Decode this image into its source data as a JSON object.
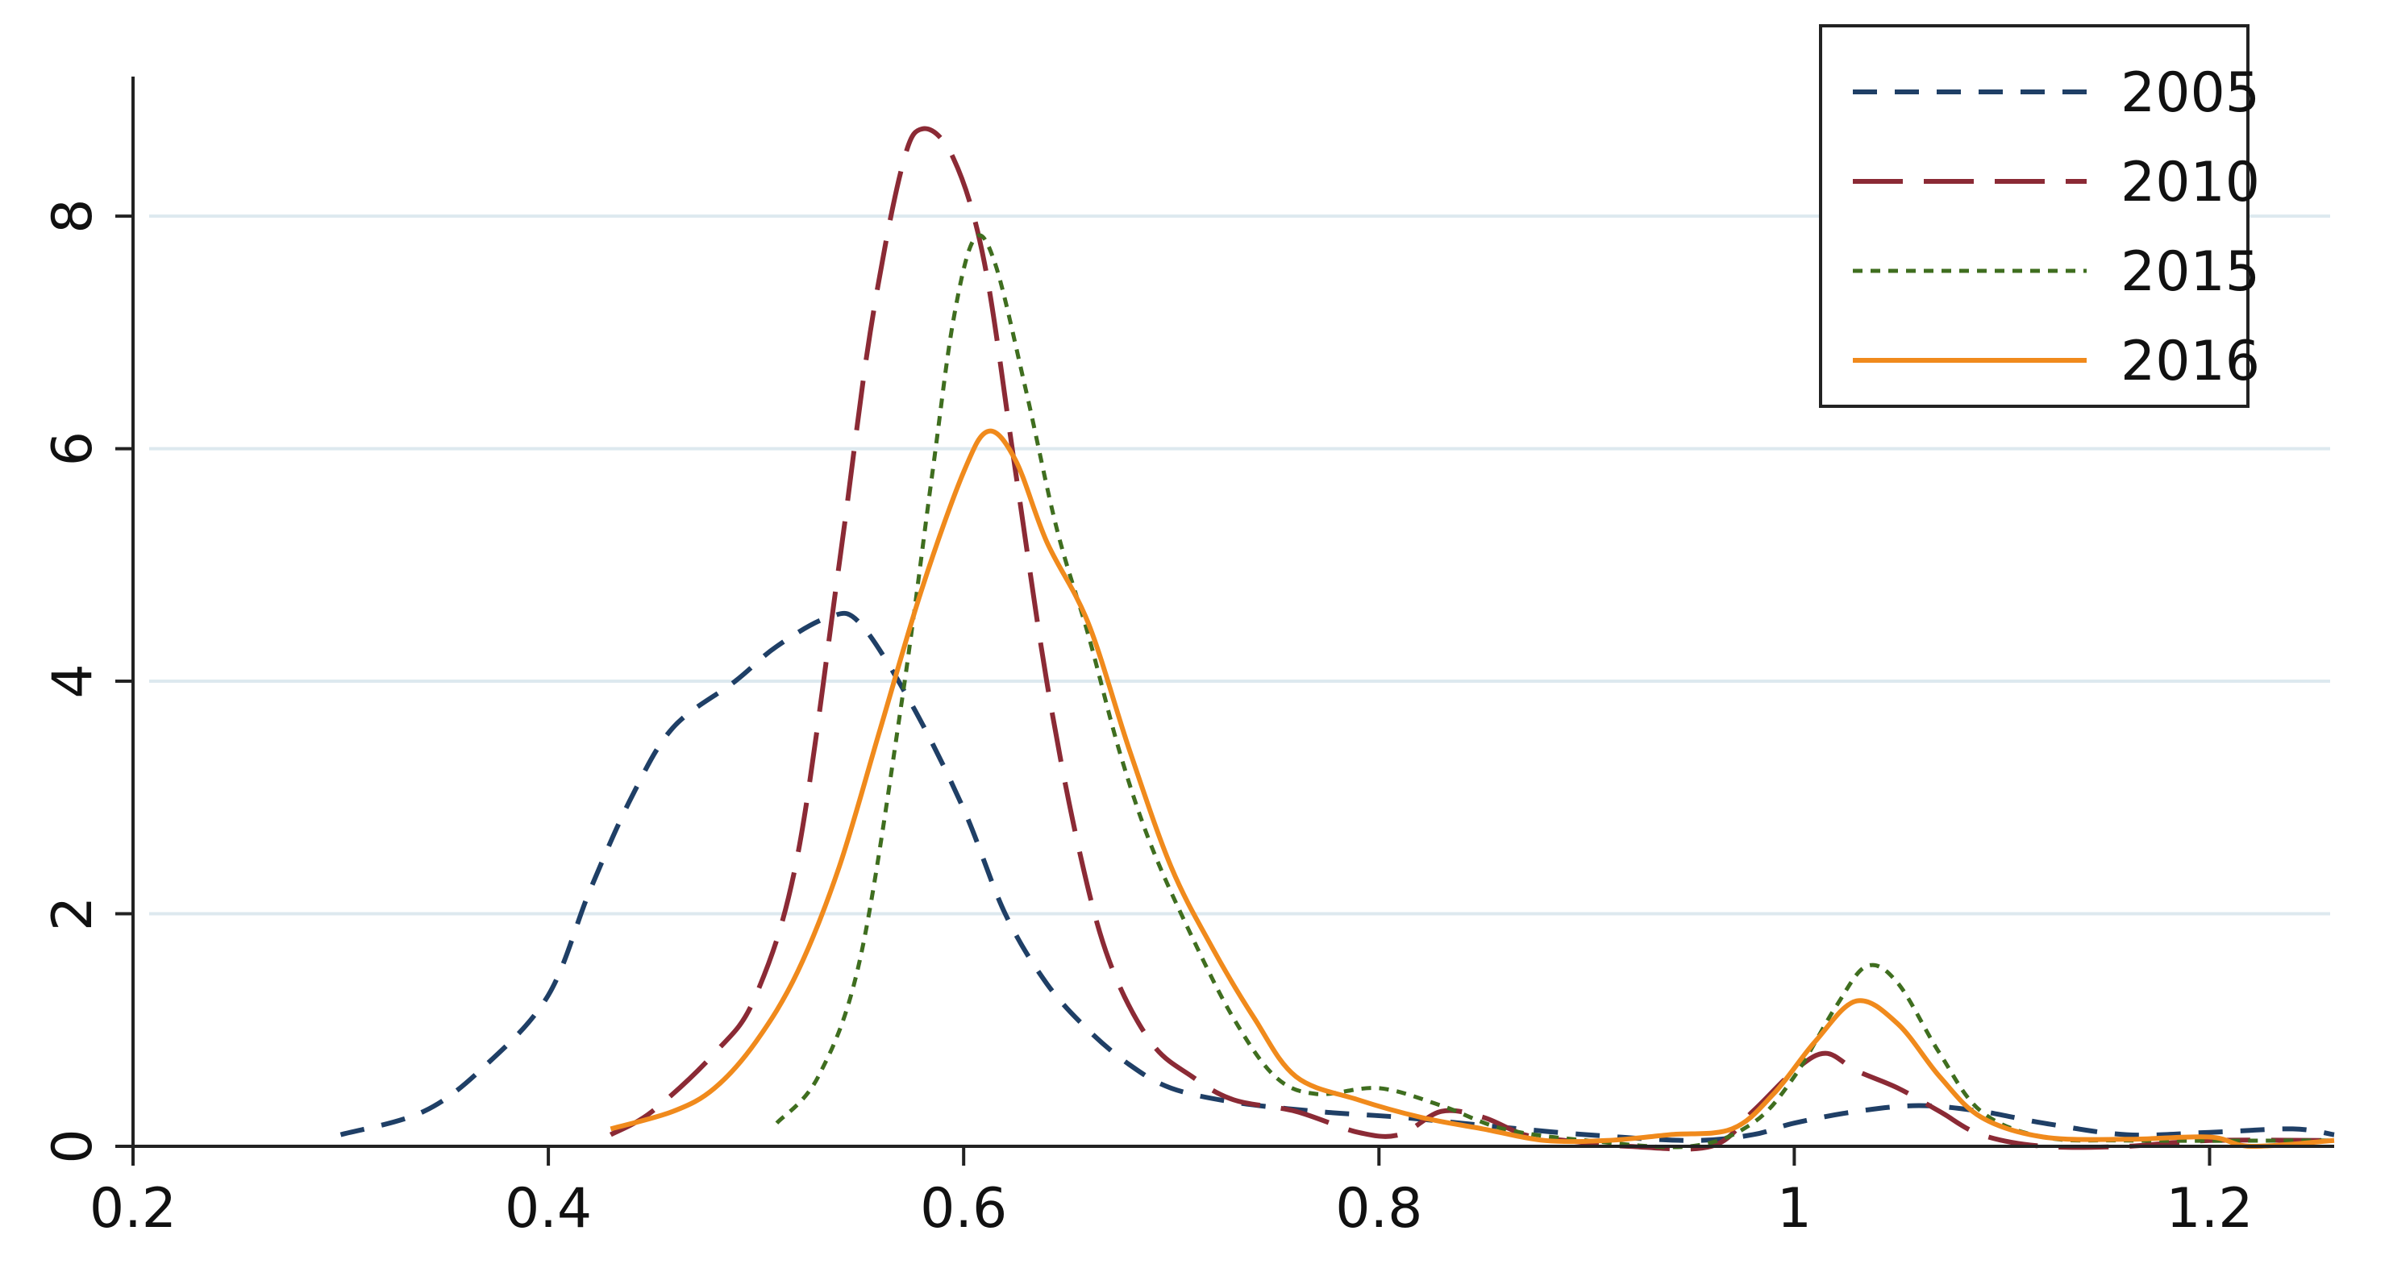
{
  "chart_data": {
    "type": "line",
    "title": "",
    "xlabel": "",
    "ylabel": "",
    "xlim": [
      0.2,
      1.26
    ],
    "ylim": [
      0,
      9.2
    ],
    "x_ticks": [
      0.2,
      0.4,
      0.6,
      0.8,
      1,
      1.2
    ],
    "x_tick_labels": [
      "0.2",
      "0.4",
      "0.6",
      "0.8",
      "1",
      "1.2"
    ],
    "y_ticks": [
      0,
      2,
      4,
      6,
      8
    ],
    "y_tick_labels": [
      "0",
      "2",
      "4",
      "6",
      "8"
    ],
    "grid": "horizontal",
    "legend_position": "top-right",
    "series": [
      {
        "name": "2005",
        "color": "#1f3f66",
        "dash": "dash",
        "points": [
          [
            0.3,
            0.1
          ],
          [
            0.34,
            0.3
          ],
          [
            0.37,
            0.7
          ],
          [
            0.4,
            1.3
          ],
          [
            0.42,
            2.2
          ],
          [
            0.44,
            3.0
          ],
          [
            0.46,
            3.6
          ],
          [
            0.49,
            4.0
          ],
          [
            0.51,
            4.3
          ],
          [
            0.535,
            4.55
          ],
          [
            0.55,
            4.5
          ],
          [
            0.575,
            3.8
          ],
          [
            0.6,
            2.9
          ],
          [
            0.62,
            2.0
          ],
          [
            0.64,
            1.4
          ],
          [
            0.66,
            1.0
          ],
          [
            0.68,
            0.7
          ],
          [
            0.7,
            0.5
          ],
          [
            0.73,
            0.38
          ],
          [
            0.77,
            0.3
          ],
          [
            0.81,
            0.25
          ],
          [
            0.85,
            0.18
          ],
          [
            0.9,
            0.1
          ],
          [
            0.95,
            0.05
          ],
          [
            0.98,
            0.1
          ],
          [
            1.0,
            0.2
          ],
          [
            1.03,
            0.3
          ],
          [
            1.06,
            0.35
          ],
          [
            1.09,
            0.3
          ],
          [
            1.12,
            0.2
          ],
          [
            1.16,
            0.1
          ],
          [
            1.2,
            0.12
          ],
          [
            1.24,
            0.15
          ],
          [
            1.26,
            0.1
          ]
        ]
      },
      {
        "name": "2010",
        "color": "#8b2a35",
        "dash": "longdash",
        "points": [
          [
            0.43,
            0.1
          ],
          [
            0.45,
            0.3
          ],
          [
            0.48,
            0.8
          ],
          [
            0.5,
            1.3
          ],
          [
            0.52,
            2.5
          ],
          [
            0.54,
            5.0
          ],
          [
            0.555,
            7.0
          ],
          [
            0.57,
            8.4
          ],
          [
            0.58,
            8.75
          ],
          [
            0.595,
            8.5
          ],
          [
            0.61,
            7.6
          ],
          [
            0.625,
            5.8
          ],
          [
            0.64,
            4.0
          ],
          [
            0.655,
            2.6
          ],
          [
            0.67,
            1.6
          ],
          [
            0.69,
            0.9
          ],
          [
            0.71,
            0.6
          ],
          [
            0.73,
            0.4
          ],
          [
            0.76,
            0.3
          ],
          [
            0.79,
            0.12
          ],
          [
            0.81,
            0.1
          ],
          [
            0.83,
            0.3
          ],
          [
            0.85,
            0.25
          ],
          [
            0.87,
            0.1
          ],
          [
            0.89,
            0.05
          ],
          [
            0.92,
            0.0
          ],
          [
            0.96,
            0.0
          ],
          [
            0.98,
            0.3
          ],
          [
            1.0,
            0.65
          ],
          [
            1.015,
            0.8
          ],
          [
            1.03,
            0.65
          ],
          [
            1.05,
            0.5
          ],
          [
            1.07,
            0.3
          ],
          [
            1.09,
            0.1
          ],
          [
            1.12,
            0.0
          ],
          [
            1.16,
            0.0
          ],
          [
            1.2,
            0.05
          ],
          [
            1.26,
            0.05
          ]
        ]
      },
      {
        "name": "2015",
        "color": "#3f6e1f",
        "dash": "dot",
        "points": [
          [
            0.51,
            0.2
          ],
          [
            0.53,
            0.6
          ],
          [
            0.55,
            1.6
          ],
          [
            0.57,
            3.8
          ],
          [
            0.585,
            5.8
          ],
          [
            0.595,
            7.1
          ],
          [
            0.605,
            7.8
          ],
          [
            0.615,
            7.6
          ],
          [
            0.63,
            6.5
          ],
          [
            0.645,
            5.3
          ],
          [
            0.66,
            4.4
          ],
          [
            0.675,
            3.4
          ],
          [
            0.69,
            2.6
          ],
          [
            0.71,
            1.8
          ],
          [
            0.73,
            1.1
          ],
          [
            0.75,
            0.6
          ],
          [
            0.77,
            0.45
          ],
          [
            0.8,
            0.5
          ],
          [
            0.83,
            0.35
          ],
          [
            0.86,
            0.15
          ],
          [
            0.9,
            0.05
          ],
          [
            0.95,
            0.0
          ],
          [
            0.98,
            0.2
          ],
          [
            1.0,
            0.6
          ],
          [
            1.02,
            1.2
          ],
          [
            1.035,
            1.55
          ],
          [
            1.05,
            1.4
          ],
          [
            1.07,
            0.8
          ],
          [
            1.09,
            0.3
          ],
          [
            1.12,
            0.08
          ],
          [
            1.16,
            0.05
          ],
          [
            1.26,
            0.05
          ]
        ]
      },
      {
        "name": "2016",
        "color": "#f08a1c",
        "dash": "solid",
        "points": [
          [
            0.43,
            0.15
          ],
          [
            0.46,
            0.3
          ],
          [
            0.48,
            0.5
          ],
          [
            0.5,
            0.9
          ],
          [
            0.52,
            1.5
          ],
          [
            0.54,
            2.4
          ],
          [
            0.56,
            3.6
          ],
          [
            0.58,
            4.8
          ],
          [
            0.6,
            5.8
          ],
          [
            0.612,
            6.15
          ],
          [
            0.625,
            5.9
          ],
          [
            0.64,
            5.2
          ],
          [
            0.66,
            4.5
          ],
          [
            0.68,
            3.4
          ],
          [
            0.7,
            2.4
          ],
          [
            0.72,
            1.7
          ],
          [
            0.74,
            1.1
          ],
          [
            0.76,
            0.6
          ],
          [
            0.79,
            0.4
          ],
          [
            0.82,
            0.25
          ],
          [
            0.85,
            0.15
          ],
          [
            0.88,
            0.05
          ],
          [
            0.91,
            0.05
          ],
          [
            0.94,
            0.1
          ],
          [
            0.97,
            0.15
          ],
          [
            0.99,
            0.45
          ],
          [
            1.01,
            0.9
          ],
          [
            1.03,
            1.25
          ],
          [
            1.05,
            1.05
          ],
          [
            1.07,
            0.6
          ],
          [
            1.09,
            0.25
          ],
          [
            1.12,
            0.08
          ],
          [
            1.16,
            0.06
          ],
          [
            1.2,
            0.08
          ],
          [
            1.22,
            0.0
          ],
          [
            1.26,
            0.05
          ]
        ]
      }
    ]
  },
  "legend": {
    "items": [
      {
        "label": "2005"
      },
      {
        "label": "2010"
      },
      {
        "label": "2015"
      },
      {
        "label": "2016"
      }
    ]
  }
}
